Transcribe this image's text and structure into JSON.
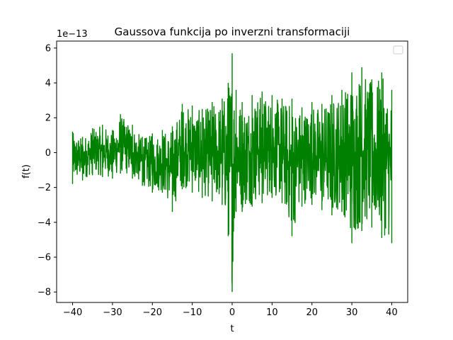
{
  "chart_data": {
    "type": "line",
    "title": "Gaussova funkcija po inverzni transformaciji",
    "xlabel": "t",
    "ylabel": "f(t)",
    "offset_text": "1e−13",
    "xlim": [
      -44,
      44
    ],
    "ylim": [
      -8.6,
      6.4
    ],
    "xticks": [
      -40,
      -30,
      -20,
      -10,
      0,
      10,
      20,
      30,
      40
    ],
    "xtick_labels": [
      "−40",
      "−30",
      "−20",
      "−10",
      "0",
      "10",
      "20",
      "30",
      "40"
    ],
    "yticks": [
      -8,
      -6,
      -4,
      -2,
      0,
      2,
      4,
      6
    ],
    "ytick_labels": [
      "−8",
      "−6",
      "−4",
      "−2",
      "0",
      "2",
      "4",
      "6"
    ],
    "grid": false,
    "legend": {
      "position": "top-right",
      "entries": []
    },
    "series": [
      {
        "color": "#008000",
        "x": [
          -40,
          -37.5,
          -35,
          -32.5,
          -30,
          -28,
          -25,
          -22.5,
          -20,
          -17.5,
          -15,
          -12.5,
          -10,
          -7.5,
          -5,
          -2.5,
          -1,
          0,
          1,
          2.5,
          5,
          7.5,
          10,
          12.5,
          15,
          17.5,
          20,
          22.5,
          25,
          27.5,
          30,
          32.5,
          35,
          37.5,
          40
        ],
        "y_upper": [
          1.2,
          0.9,
          1.4,
          1.6,
          1.3,
          2.2,
          1.6,
          0.9,
          1.1,
          1.3,
          1.5,
          2.8,
          2.7,
          2.5,
          2.9,
          3.1,
          4.0,
          5.7,
          3.6,
          2.9,
          3.3,
          3.5,
          3.3,
          3.1,
          3.1,
          2.6,
          2.9,
          2.8,
          3.3,
          3.6,
          4.6,
          4.9,
          4.2,
          4.6,
          3.6
        ],
        "y_lower": [
          -1.8,
          -1.6,
          -1.3,
          -1.4,
          -1.5,
          -1.2,
          -1.5,
          -1.9,
          -2.3,
          -2.3,
          -3.4,
          -2.1,
          -2.3,
          -2.6,
          -2.8,
          -3.0,
          -4.8,
          -8.0,
          -3.4,
          -3.4,
          -3.1,
          -2.9,
          -2.6,
          -2.9,
          -4.8,
          -3.1,
          -3.0,
          -3.3,
          -3.6,
          -3.4,
          -5.2,
          -4.5,
          -4.3,
          -4.9,
          -5.2
        ]
      }
    ]
  }
}
